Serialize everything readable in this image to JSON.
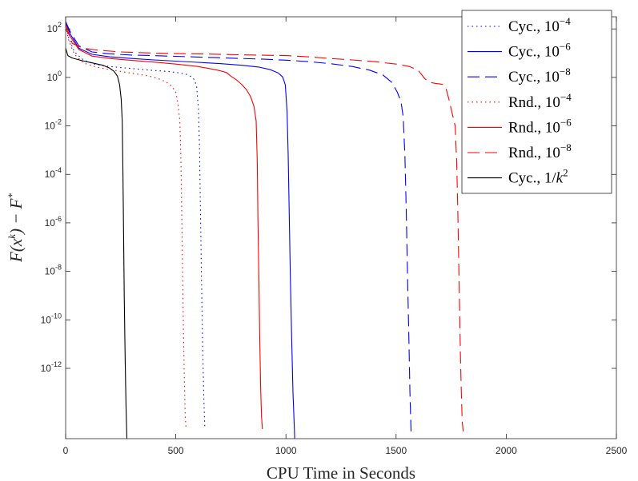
{
  "chart_data": {
    "type": "line",
    "title": "",
    "xlabel": "CPU Time in Seconds",
    "ylabel_main": "F(x",
    "ylabel_sup": "k",
    "ylabel_rest": ") − F",
    "ylabel_star": "*",
    "xlim": [
      0,
      2500
    ],
    "ylog10_range": [
      -14.9,
      2.5
    ],
    "x_ticks": [
      0,
      500,
      1000,
      1500,
      2000,
      2500
    ],
    "y_tick_exponents": [
      2,
      0,
      -2,
      -4,
      -6,
      -8,
      -10,
      -12
    ],
    "grid": false,
    "legend_position": "top-right",
    "series": [
      {
        "name": "Cyc., 10^-4",
        "legend_text": "Cyc., 10",
        "legend_exp": "−4",
        "color": "#0000ff",
        "dash": "1.5 4",
        "x": [
          0,
          15,
          40,
          80,
          130,
          180,
          230,
          280,
          330,
          380,
          430,
          480,
          520,
          550,
          570,
          585,
          595,
          603,
          608,
          612,
          617,
          622,
          627,
          632
        ],
        "log10y": [
          2.2,
          1.6,
          1.05,
          0.72,
          0.55,
          0.47,
          0.42,
          0.38,
          0.34,
          0.3,
          0.27,
          0.23,
          0.18,
          0.12,
          0.03,
          -0.1,
          -0.4,
          -1.3,
          -3,
          -5.5,
          -8.5,
          -11.2,
          -13.2,
          -14.5
        ]
      },
      {
        "name": "Cyc., 10^-6",
        "legend_text": "Cyc., 10",
        "legend_exp": "−6",
        "color": "#0000ff",
        "dash": "",
        "x": [
          0,
          20,
          60,
          120,
          200,
          300,
          400,
          500,
          600,
          700,
          800,
          880,
          930,
          965,
          985,
          997,
          1005,
          1010,
          1015,
          1020,
          1026,
          1032,
          1040
        ],
        "log10y": [
          2.3,
          1.8,
          1.2,
          0.95,
          0.85,
          0.78,
          0.72,
          0.67,
          0.62,
          0.57,
          0.5,
          0.42,
          0.32,
          0.18,
          0.02,
          -0.3,
          -1.4,
          -3.2,
          -5.6,
          -8.2,
          -10.8,
          -13,
          -14.9
        ]
      },
      {
        "name": "Cyc., 10^-8",
        "legend_text": "Cyc., 10",
        "legend_exp": "−8",
        "color": "#0000ff",
        "dash": "15 7",
        "x": [
          0,
          20,
          60,
          120,
          200,
          300,
          400,
          500,
          600,
          700,
          800,
          900,
          1000,
          1100,
          1200,
          1300,
          1380,
          1440,
          1480,
          1505,
          1522,
          1532,
          1540,
          1546,
          1552,
          1558,
          1563,
          1568
        ],
        "log10y": [
          2.3,
          1.9,
          1.3,
          1.05,
          0.97,
          0.92,
          0.9,
          0.87,
          0.84,
          0.81,
          0.78,
          0.75,
          0.71,
          0.65,
          0.57,
          0.45,
          0.3,
          0.1,
          -0.2,
          -0.6,
          -1,
          -1.6,
          -3.2,
          -5.5,
          -8.2,
          -10.8,
          -13,
          -14.6
        ]
      },
      {
        "name": "Rnd., 10^-4",
        "legend_text": "Rnd., 10",
        "legend_exp": "−4",
        "color": "#ff0000",
        "dash": "1.5 4",
        "x": [
          0,
          15,
          40,
          80,
          130,
          180,
          230,
          280,
          330,
          380,
          420,
          455,
          480,
          500,
          510,
          518,
          523,
          527,
          531,
          535,
          539,
          543,
          547
        ],
        "log10y": [
          2.1,
          1.5,
          0.95,
          0.6,
          0.45,
          0.35,
          0.28,
          0.2,
          0.13,
          0.05,
          -0.05,
          -0.18,
          -0.35,
          -0.6,
          -1.1,
          -1.8,
          -3.2,
          -5.5,
          -8,
          -10.5,
          -12.5,
          -14,
          -14.5
        ]
      },
      {
        "name": "Rnd., 10^-6",
        "legend_text": "Rnd., 10",
        "legend_exp": "−6",
        "color": "#ff0000",
        "dash": "",
        "x": [
          0,
          20,
          60,
          120,
          200,
          300,
          400,
          500,
          600,
          660,
          700,
          730,
          750,
          775,
          800,
          820,
          840,
          855,
          865,
          870,
          873,
          877,
          881,
          885,
          889,
          893
        ],
        "log10y": [
          2,
          1.7,
          1.15,
          0.88,
          0.78,
          0.7,
          0.63,
          0.55,
          0.45,
          0.35,
          0.28,
          0.2,
          0.05,
          -0.1,
          -0.3,
          -0.5,
          -0.8,
          -1.2,
          -1.8,
          -3.5,
          -5.8,
          -8.3,
          -10.8,
          -12.8,
          -14,
          -14.5
        ]
      },
      {
        "name": "Rnd., 10^-8",
        "legend_text": "Rnd., 10",
        "legend_exp": "−8",
        "color": "#ff0000",
        "dash": "15 7",
        "x": [
          0,
          30,
          80,
          150,
          250,
          400,
          600,
          800,
          1000,
          1100,
          1200,
          1300,
          1400,
          1500,
          1560,
          1600,
          1630,
          1650,
          1680,
          1700,
          1715,
          1725,
          1740,
          1755,
          1768,
          1775,
          1780,
          1784,
          1788,
          1792,
          1796,
          1800,
          1805
        ],
        "log10y": [
          2.2,
          1.4,
          1.2,
          1.12,
          1.05,
          1,
          0.97,
          0.93,
          0.9,
          0.85,
          0.78,
          0.72,
          0.65,
          0.55,
          0.45,
          0.3,
          -0.05,
          -0.2,
          -0.25,
          -0.27,
          -0.3,
          -0.4,
          -0.9,
          -1.5,
          -2,
          -3.5,
          -5.5,
          -7.5,
          -9.5,
          -11.5,
          -13,
          -14.2,
          -14.6
        ]
      },
      {
        "name": "Cyc., 1/k^2",
        "legend_text": "Cyc., 1/",
        "legend_italic": "k",
        "legend_exp": "2",
        "color": "#000000",
        "dash": "",
        "x": [
          0,
          10,
          30,
          70,
          120,
          170,
          200,
          220,
          235,
          245,
          252,
          257,
          260,
          263,
          266,
          270,
          274,
          278
        ],
        "log10y": [
          1.2,
          0.9,
          0.8,
          0.7,
          0.6,
          0.5,
          0.38,
          0.25,
          0.05,
          -0.3,
          -0.9,
          -1.8,
          -4,
          -6.5,
          -9,
          -11.5,
          -13.5,
          -14.9
        ]
      }
    ]
  }
}
